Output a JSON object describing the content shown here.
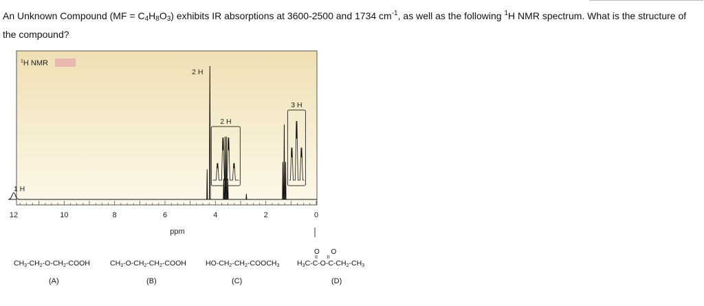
{
  "question": {
    "p1": "An Unknown Compound (MF = C",
    "c": "4",
    "p2": "H",
    "h": "8",
    "p3": "O",
    "o": "3",
    "p4": ") exhibits IR absorptions at 3600-2500 and 1734 cm",
    "sup1": "-1",
    "p5": ", as well as the following ",
    "sup2": "1",
    "p6": "H NMR spectrum. What is the structure of the compound?"
  },
  "chart_data": {
    "type": "line",
    "title_sup": "1",
    "title": "H NMR",
    "xlabel": "ppm",
    "xlim": [
      12,
      0
    ],
    "x_ticks": [
      12,
      10,
      8,
      6,
      4,
      2,
      0
    ],
    "peaks": [
      {
        "ppm": 12.0,
        "relative_height": 0.06,
        "integration": "1 H",
        "kind": "broad singlet"
      },
      {
        "ppm": 4.22,
        "relative_height": 0.98,
        "integration": "2 H",
        "kind": "singlet"
      },
      {
        "ppm": 3.59,
        "relative_height": 0.46,
        "integration": "2 H",
        "kind": "quartet"
      },
      {
        "ppm": 1.27,
        "relative_height": 0.55,
        "integration": "3 H",
        "kind": "triplet"
      }
    ],
    "integration_labels": [
      "2 H",
      "3 H",
      "2 H",
      "1 H"
    ],
    "colors": {
      "plot_bg_top": "#efe0b3",
      "plot_bg_bottom": "#fdf8ea",
      "title_swatch": "#e8b7b0",
      "trace": "#111111"
    }
  },
  "options": {
    "a_formula": [
      "CH",
      "3",
      "-CH",
      "2",
      "-O-CH",
      "2",
      "-COOH"
    ],
    "a_label": "(A)",
    "b_formula": [
      "CH",
      "3",
      "-O-CH",
      "2",
      "-CH",
      "2",
      "-COOH"
    ],
    "b_label": "(B)",
    "c_formula": [
      "HO-CH",
      "2",
      "-CH",
      "2",
      "-COOCH",
      "3"
    ],
    "c_label": "(C)",
    "d_formula": [
      "H",
      "3",
      "C-C-O-C-CH",
      "2",
      "-CH",
      "3"
    ],
    "d_oxygens": "O      O",
    "d_double_bonds": "II       II",
    "d_label": "(D)"
  }
}
